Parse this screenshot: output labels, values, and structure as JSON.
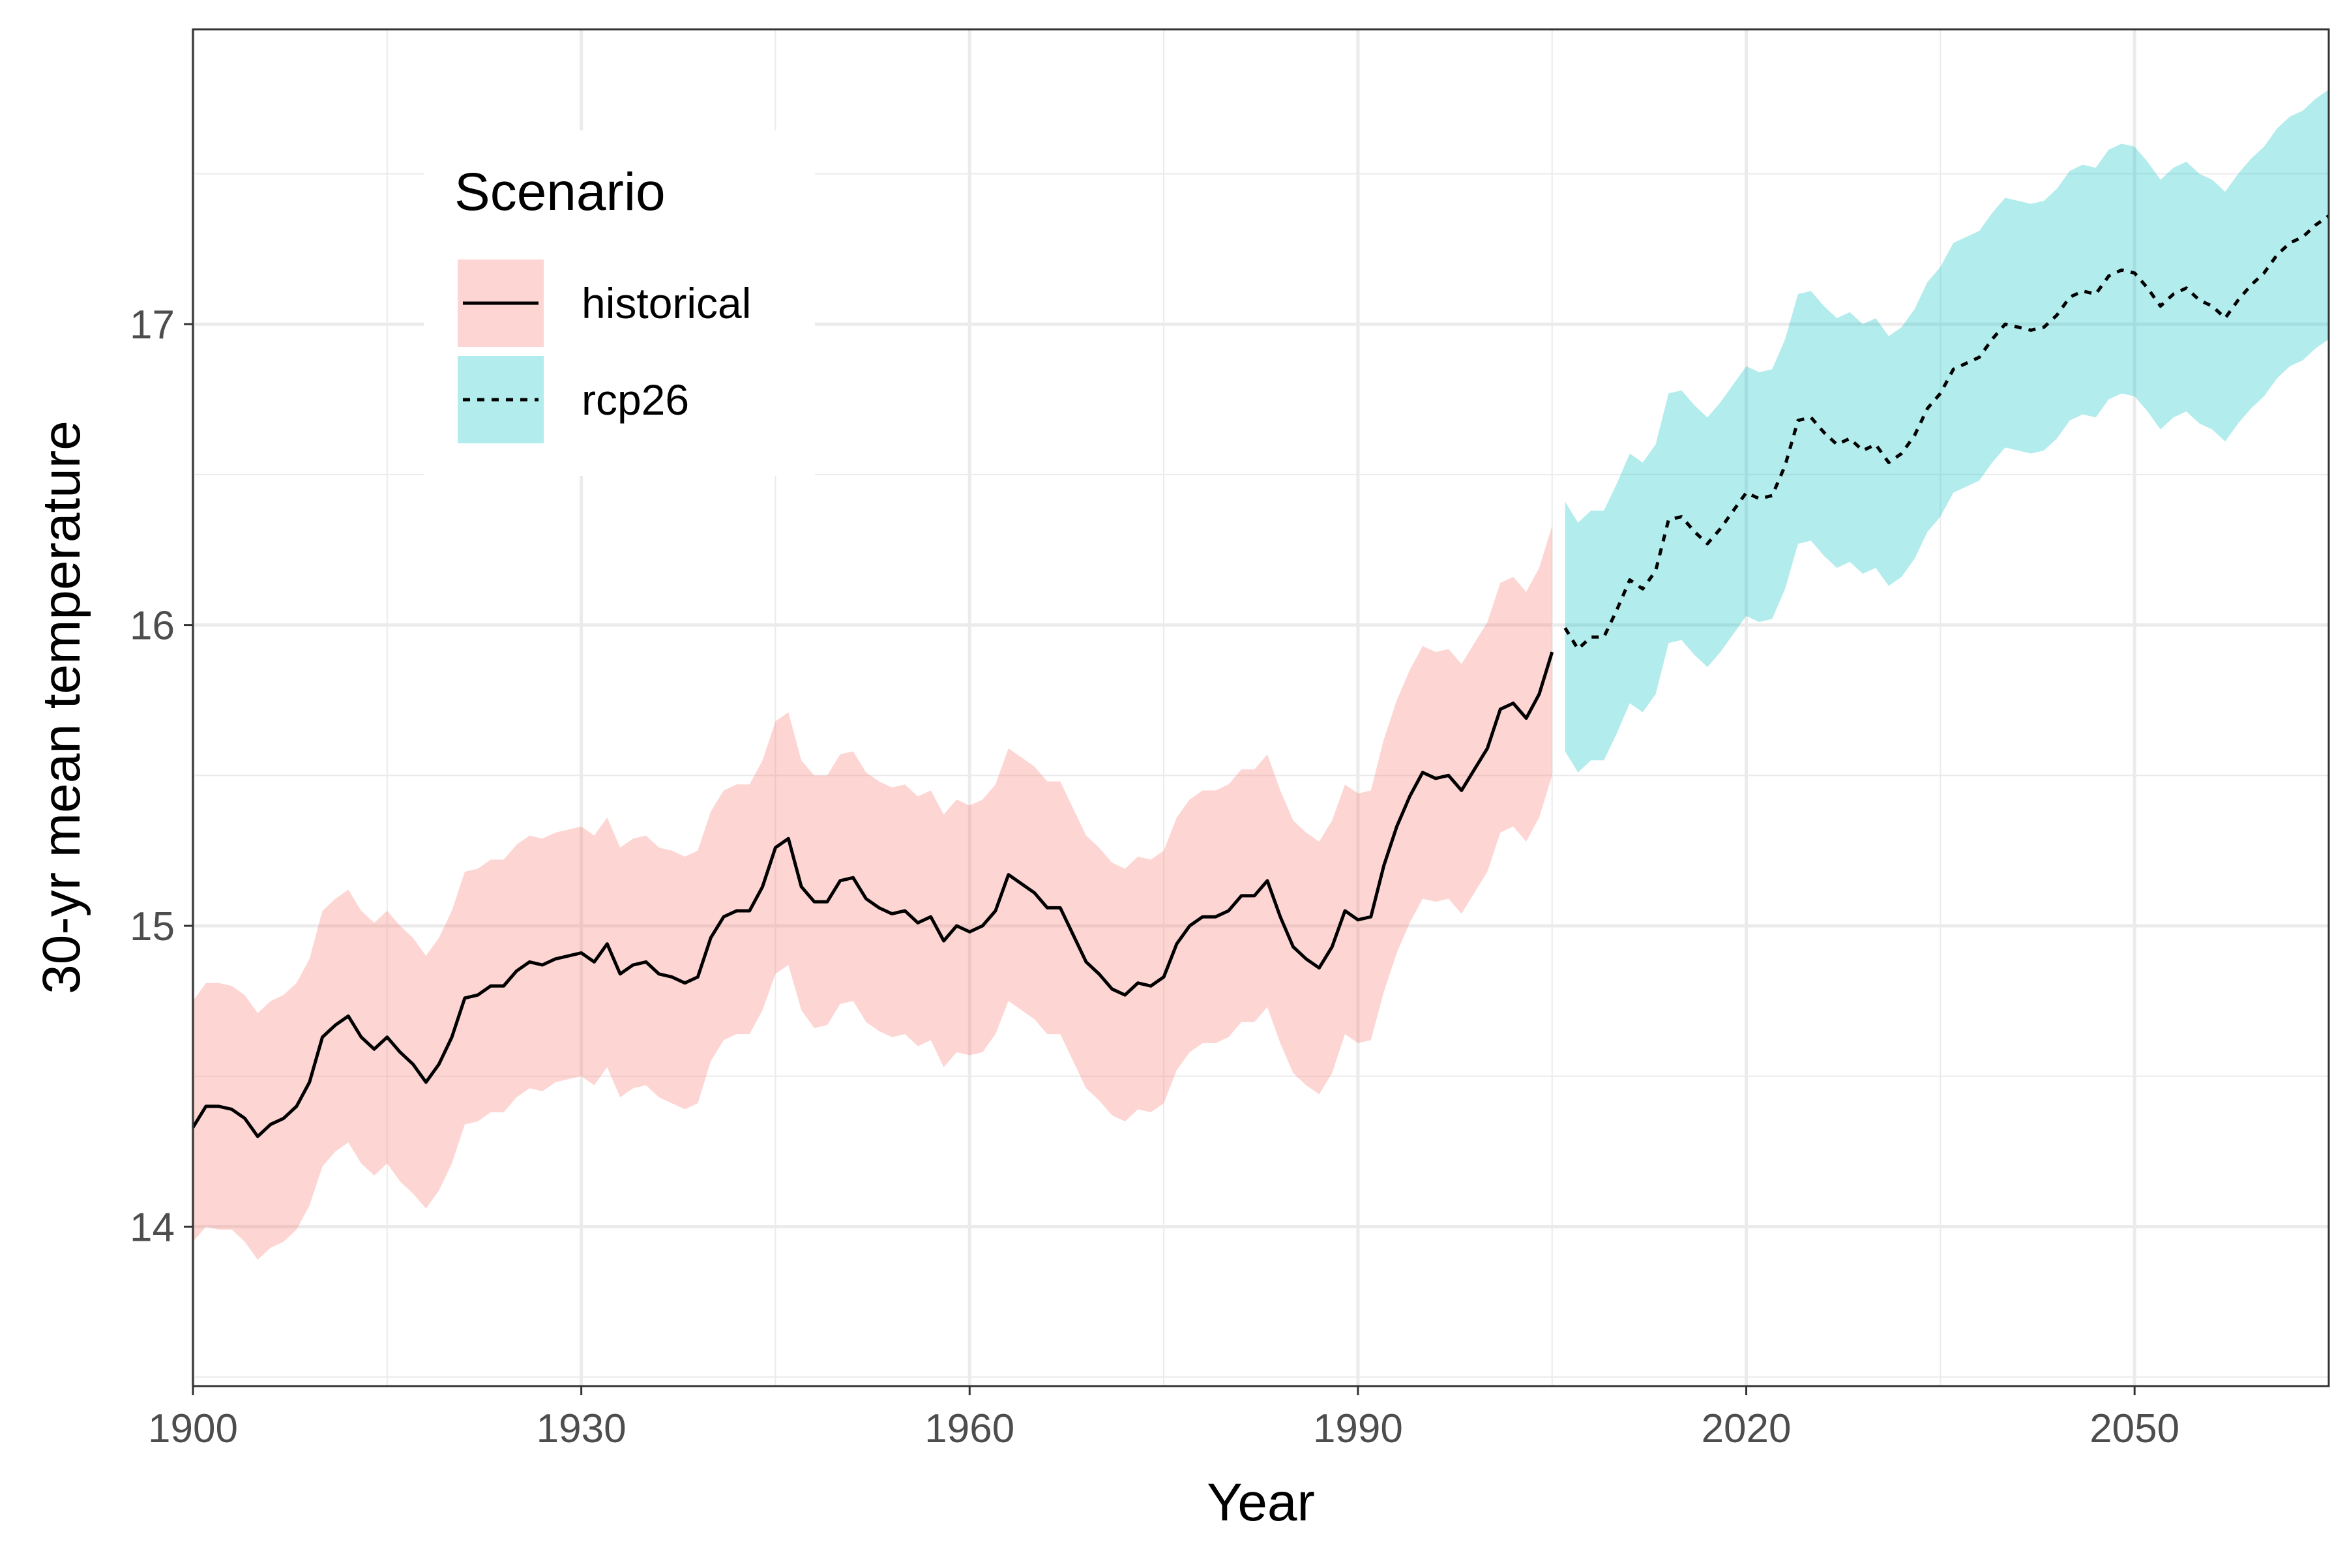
{
  "chart_data": {
    "type": "line",
    "title": "",
    "xlabel": "Year",
    "ylabel": "30-yr mean temperature",
    "xlim": [
      1900,
      2065
    ],
    "ylim": [
      13.47,
      17.98
    ],
    "x_ticks": [
      1900,
      1930,
      1960,
      1990,
      2020,
      2050
    ],
    "x_tick_labels": [
      "1900",
      "1930",
      "1960",
      "1990",
      "2020",
      "2050"
    ],
    "y_ticks": [
      14,
      15,
      16,
      17
    ],
    "y_tick_labels": [
      "14",
      "15",
      "16",
      "17"
    ],
    "grid": true,
    "legend": {
      "title": "Scenario",
      "placement": "top-left",
      "entries": [
        "historical",
        "rcp26"
      ]
    },
    "colors": {
      "historical_band": "#f8766d",
      "rcp26_band": "#00bfc4",
      "line": "#000000",
      "grid": "#ebebeb",
      "panel_border": "#333333"
    },
    "band_opacity": 0.3,
    "series": [
      {
        "name": "historical",
        "line_style": "solid",
        "x": [
          1900,
          1901,
          1902,
          1903,
          1904,
          1905,
          1906,
          1907,
          1908,
          1909,
          1910,
          1911,
          1912,
          1913,
          1914,
          1915,
          1916,
          1917,
          1918,
          1919,
          1920,
          1921,
          1922,
          1923,
          1924,
          1925,
          1926,
          1927,
          1928,
          1929,
          1930,
          1931,
          1932,
          1933,
          1934,
          1935,
          1936,
          1937,
          1938,
          1939,
          1940,
          1941,
          1942,
          1943,
          1944,
          1945,
          1946,
          1947,
          1948,
          1949,
          1950,
          1951,
          1952,
          1953,
          1954,
          1955,
          1956,
          1957,
          1958,
          1959,
          1960,
          1961,
          1962,
          1963,
          1964,
          1965,
          1966,
          1967,
          1968,
          1969,
          1970,
          1971,
          1972,
          1973,
          1974,
          1975,
          1976,
          1977,
          1978,
          1979,
          1980,
          1981,
          1982,
          1983,
          1984,
          1985,
          1986,
          1987,
          1988,
          1989,
          1990,
          1991,
          1992,
          1993,
          1994,
          1995,
          1996,
          1997,
          1998,
          1999,
          2000,
          2001,
          2002,
          2003,
          2004,
          2005
        ],
        "y": [
          14.33,
          14.4,
          14.4,
          14.39,
          14.36,
          14.3,
          14.34,
          14.36,
          14.4,
          14.48,
          14.63,
          14.67,
          14.7,
          14.63,
          14.59,
          14.63,
          14.58,
          14.54,
          14.48,
          14.54,
          14.63,
          14.76,
          14.77,
          14.8,
          14.8,
          14.85,
          14.88,
          14.87,
          14.89,
          14.9,
          14.91,
          14.88,
          14.94,
          14.84,
          14.87,
          14.88,
          14.84,
          14.83,
          14.81,
          14.83,
          14.96,
          15.03,
          15.05,
          15.05,
          15.13,
          15.26,
          15.29,
          15.13,
          15.08,
          15.08,
          15.15,
          15.16,
          15.09,
          15.06,
          15.04,
          15.05,
          15.01,
          15.03,
          14.95,
          15.0,
          14.98,
          15.0,
          15.05,
          15.17,
          15.14,
          15.11,
          15.06,
          15.06,
          14.97,
          14.88,
          14.84,
          14.79,
          14.77,
          14.81,
          14.8,
          14.83,
          14.94,
          15.0,
          15.03,
          15.03,
          15.05,
          15.1,
          15.1,
          15.15,
          15.03,
          14.93,
          14.89,
          14.86,
          14.93,
          15.05,
          15.02,
          15.03,
          15.2,
          15.33,
          15.43,
          15.51,
          15.49,
          15.5,
          15.45,
          15.52,
          15.59,
          15.72,
          15.74,
          15.69,
          15.77,
          15.91
        ],
        "lower": [
          13.95,
          14.0,
          13.99,
          13.99,
          13.95,
          13.89,
          13.93,
          13.95,
          13.99,
          14.07,
          14.2,
          14.25,
          14.28,
          14.21,
          14.17,
          14.21,
          14.15,
          14.11,
          14.06,
          14.12,
          14.21,
          14.34,
          14.35,
          14.38,
          14.38,
          14.43,
          14.46,
          14.45,
          14.48,
          14.49,
          14.5,
          14.47,
          14.53,
          14.43,
          14.46,
          14.47,
          14.43,
          14.41,
          14.39,
          14.41,
          14.55,
          14.62,
          14.64,
          14.64,
          14.72,
          14.84,
          14.87,
          14.72,
          14.66,
          14.67,
          14.74,
          14.75,
          14.68,
          14.65,
          14.63,
          14.64,
          14.6,
          14.62,
          14.53,
          14.58,
          14.57,
          14.58,
          14.64,
          14.75,
          14.72,
          14.69,
          14.64,
          14.64,
          14.55,
          14.46,
          14.42,
          14.37,
          14.35,
          14.39,
          14.38,
          14.41,
          14.52,
          14.58,
          14.61,
          14.61,
          14.63,
          14.68,
          14.68,
          14.73,
          14.61,
          14.51,
          14.47,
          14.44,
          14.51,
          14.64,
          14.61,
          14.62,
          14.78,
          14.91,
          15.01,
          15.09,
          15.08,
          15.09,
          15.04,
          15.11,
          15.18,
          15.31,
          15.33,
          15.28,
          15.36,
          15.5
        ],
        "upper": [
          14.75,
          14.81,
          14.81,
          14.8,
          14.77,
          14.71,
          14.75,
          14.77,
          14.81,
          14.89,
          15.05,
          15.09,
          15.12,
          15.05,
          15.01,
          15.05,
          15.0,
          14.96,
          14.9,
          14.96,
          15.05,
          15.18,
          15.19,
          15.22,
          15.22,
          15.27,
          15.3,
          15.29,
          15.31,
          15.32,
          15.33,
          15.3,
          15.36,
          15.26,
          15.29,
          15.3,
          15.26,
          15.25,
          15.23,
          15.25,
          15.38,
          15.45,
          15.47,
          15.47,
          15.55,
          15.68,
          15.71,
          15.55,
          15.5,
          15.5,
          15.57,
          15.58,
          15.51,
          15.48,
          15.46,
          15.47,
          15.43,
          15.45,
          15.37,
          15.42,
          15.4,
          15.42,
          15.47,
          15.59,
          15.56,
          15.53,
          15.48,
          15.48,
          15.39,
          15.3,
          15.26,
          15.21,
          15.19,
          15.23,
          15.22,
          15.25,
          15.36,
          15.42,
          15.45,
          15.45,
          15.47,
          15.52,
          15.52,
          15.57,
          15.45,
          15.35,
          15.31,
          15.28,
          15.35,
          15.47,
          15.44,
          15.45,
          15.62,
          15.75,
          15.85,
          15.93,
          15.91,
          15.92,
          15.87,
          15.94,
          16.01,
          16.14,
          16.16,
          16.11,
          16.19,
          16.33
        ]
      },
      {
        "name": "rcp26",
        "line_style": "dashed",
        "x": [
          2006,
          2007,
          2008,
          2009,
          2010,
          2011,
          2012,
          2013,
          2014,
          2015,
          2016,
          2017,
          2018,
          2019,
          2020,
          2021,
          2022,
          2023,
          2024,
          2025,
          2026,
          2027,
          2028,
          2029,
          2030,
          2031,
          2032,
          2033,
          2034,
          2035,
          2036,
          2037,
          2038,
          2039,
          2040,
          2041,
          2042,
          2043,
          2044,
          2045,
          2046,
          2047,
          2048,
          2049,
          2050,
          2051,
          2052,
          2053,
          2054,
          2055,
          2056,
          2057,
          2058,
          2059,
          2060,
          2061,
          2062,
          2063,
          2064,
          2065
        ],
        "y": [
          15.99,
          15.92,
          15.96,
          15.96,
          16.05,
          16.15,
          16.12,
          16.18,
          16.35,
          16.36,
          16.31,
          16.27,
          16.32,
          16.38,
          16.44,
          16.42,
          16.43,
          16.53,
          16.68,
          16.69,
          16.64,
          16.6,
          16.62,
          16.58,
          16.6,
          16.54,
          16.57,
          16.63,
          16.72,
          16.77,
          16.85,
          16.87,
          16.89,
          16.95,
          17.0,
          16.99,
          16.98,
          16.99,
          17.03,
          17.09,
          17.11,
          17.1,
          17.16,
          17.18,
          17.17,
          17.12,
          17.06,
          17.1,
          17.12,
          17.08,
          17.06,
          17.02,
          17.08,
          17.13,
          17.17,
          17.23,
          17.27,
          17.29,
          17.33,
          17.36
        ],
        "lower": [
          15.58,
          15.51,
          15.55,
          15.55,
          15.64,
          15.74,
          15.71,
          15.77,
          15.94,
          15.95,
          15.9,
          15.86,
          15.91,
          15.97,
          16.03,
          16.01,
          16.02,
          16.12,
          16.27,
          16.28,
          16.23,
          16.19,
          16.21,
          16.17,
          16.19,
          16.13,
          16.16,
          16.22,
          16.31,
          16.36,
          16.44,
          16.46,
          16.48,
          16.54,
          16.59,
          16.58,
          16.57,
          16.58,
          16.62,
          16.68,
          16.7,
          16.69,
          16.75,
          16.77,
          16.76,
          16.71,
          16.65,
          16.69,
          16.71,
          16.67,
          16.65,
          16.61,
          16.67,
          16.72,
          16.76,
          16.82,
          16.86,
          16.88,
          16.92,
          16.95
        ],
        "upper": [
          16.41,
          16.34,
          16.38,
          16.38,
          16.47,
          16.57,
          16.54,
          16.6,
          16.77,
          16.78,
          16.73,
          16.69,
          16.74,
          16.8,
          16.86,
          16.84,
          16.85,
          16.95,
          17.1,
          17.11,
          17.06,
          17.02,
          17.04,
          17.0,
          17.02,
          16.96,
          16.99,
          17.05,
          17.14,
          17.19,
          17.27,
          17.29,
          17.31,
          17.37,
          17.42,
          17.41,
          17.4,
          17.41,
          17.45,
          17.51,
          17.53,
          17.52,
          17.58,
          17.6,
          17.59,
          17.54,
          17.48,
          17.52,
          17.54,
          17.5,
          17.48,
          17.44,
          17.5,
          17.55,
          17.59,
          17.65,
          17.69,
          17.71,
          17.75,
          17.78
        ]
      }
    ]
  }
}
